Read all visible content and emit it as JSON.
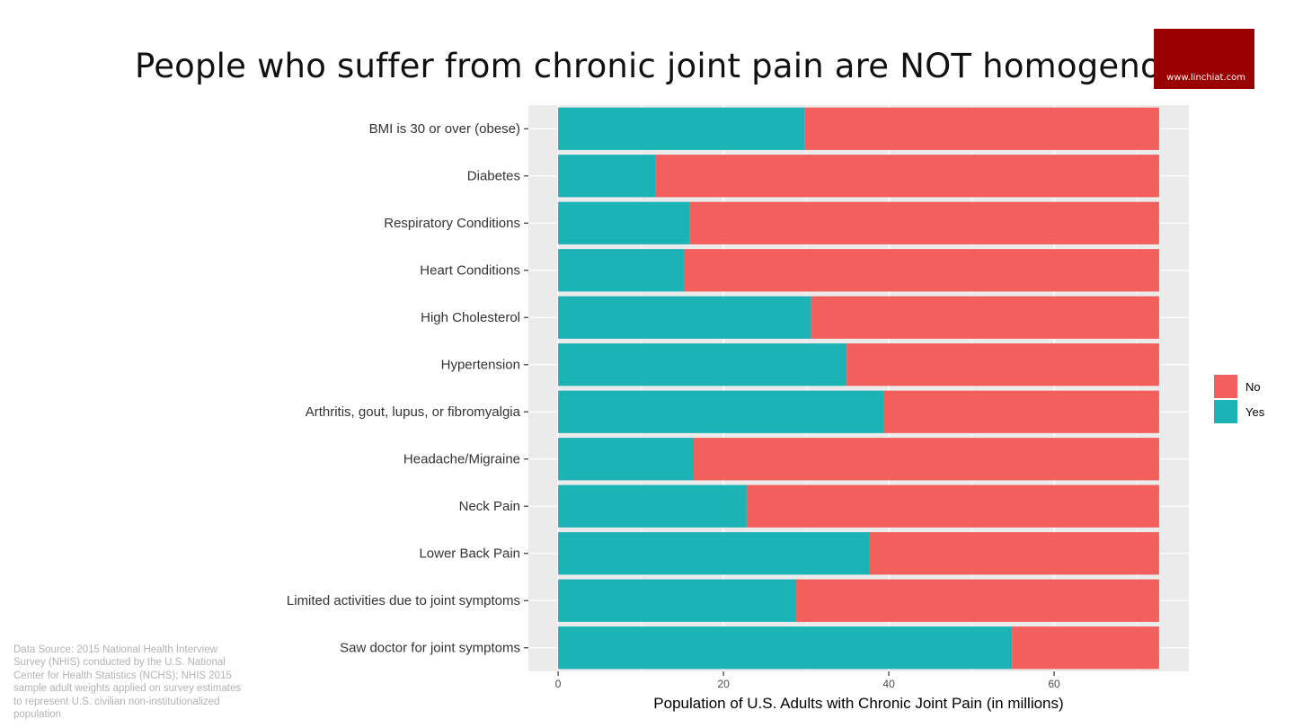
{
  "page": {
    "title": "People who suffer from chronic joint pain are NOT homogenous",
    "brand": "www.linchiat.com",
    "source_note": "Data Source: 2015 National Health Interview Survey (NHIS) conducted by the U.S. National Center for Health Statistics (NCHS); NHIS 2015 sample adult weights applied on survey estimates to represent U.S. civilian non-institutionalized population"
  },
  "colors": {
    "yes": "#1BB3B6",
    "no": "#F25F5C",
    "panel": "#EBEBEB",
    "grid": "#FFFFFF",
    "brand": "#990000"
  },
  "chart_data": {
    "type": "bar",
    "orientation": "horizontal",
    "stacked": true,
    "categories": [
      "BMI is 30 or over (obese)",
      "Diabetes",
      "Respiratory Conditions",
      "Heart Conditions",
      "High Cholesterol",
      "Hypertension",
      "Arthritis, gout, lupus, or fibromyalgia",
      "Headache/Migraine",
      "Neck Pain",
      "Lower Back Pain",
      "Limited activities due to joint symptoms",
      "Saw doctor for joint symptoms"
    ],
    "series": [
      {
        "name": "Yes",
        "values": [
          29.8,
          11.8,
          15.9,
          15.2,
          30.6,
          34.9,
          39.4,
          16.4,
          22.8,
          37.6,
          28.8,
          54.9
        ]
      },
      {
        "name": "No",
        "values": [
          42.9,
          60.9,
          56.8,
          57.5,
          42.1,
          37.8,
          33.3,
          56.3,
          49.9,
          35.1,
          43.9,
          17.8
        ]
      }
    ],
    "xlabel": "Population of U.S. Adults with Chronic Joint Pain (in millions)",
    "ylabel": "",
    "xlim": [
      -3.6,
      76.3
    ],
    "xticks": [
      0,
      20,
      40,
      60
    ],
    "legend": {
      "placement": "right",
      "entries": [
        "No",
        "Yes"
      ]
    },
    "grid": true
  }
}
